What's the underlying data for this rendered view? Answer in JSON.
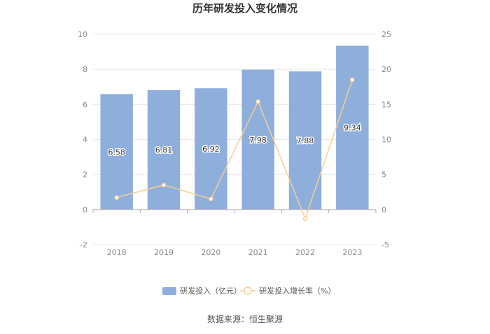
{
  "chart_data": {
    "type": "bar",
    "title": "历年研发投入变化情况",
    "categories": [
      "2018",
      "2019",
      "2020",
      "2021",
      "2022",
      "2023"
    ],
    "series": [
      {
        "name": "研发投入（亿元）",
        "type": "bar",
        "axis": "left",
        "color": "#8eaedb",
        "values": [
          6.58,
          6.81,
          6.92,
          7.98,
          7.88,
          9.34
        ],
        "labels": [
          "6.58",
          "6.81",
          "6.92",
          "7.98",
          "7.88",
          "9.34"
        ]
      },
      {
        "name": "研发投入增长率（%）",
        "type": "line",
        "axis": "right",
        "color": "#f5cf94",
        "values": [
          1.7,
          3.5,
          1.5,
          15.4,
          -1.3,
          18.5
        ]
      }
    ],
    "y_left": {
      "min": -2,
      "max": 10,
      "ticks": [
        "-2",
        "0",
        "2",
        "4",
        "6",
        "8",
        "10"
      ]
    },
    "y_right": {
      "min": -5,
      "max": 25,
      "ticks": [
        "-5",
        "0",
        "5",
        "10",
        "15",
        "20",
        "25"
      ]
    },
    "grid": true,
    "legend_position": "bottom"
  },
  "source": "数据来源：恒生聚源"
}
